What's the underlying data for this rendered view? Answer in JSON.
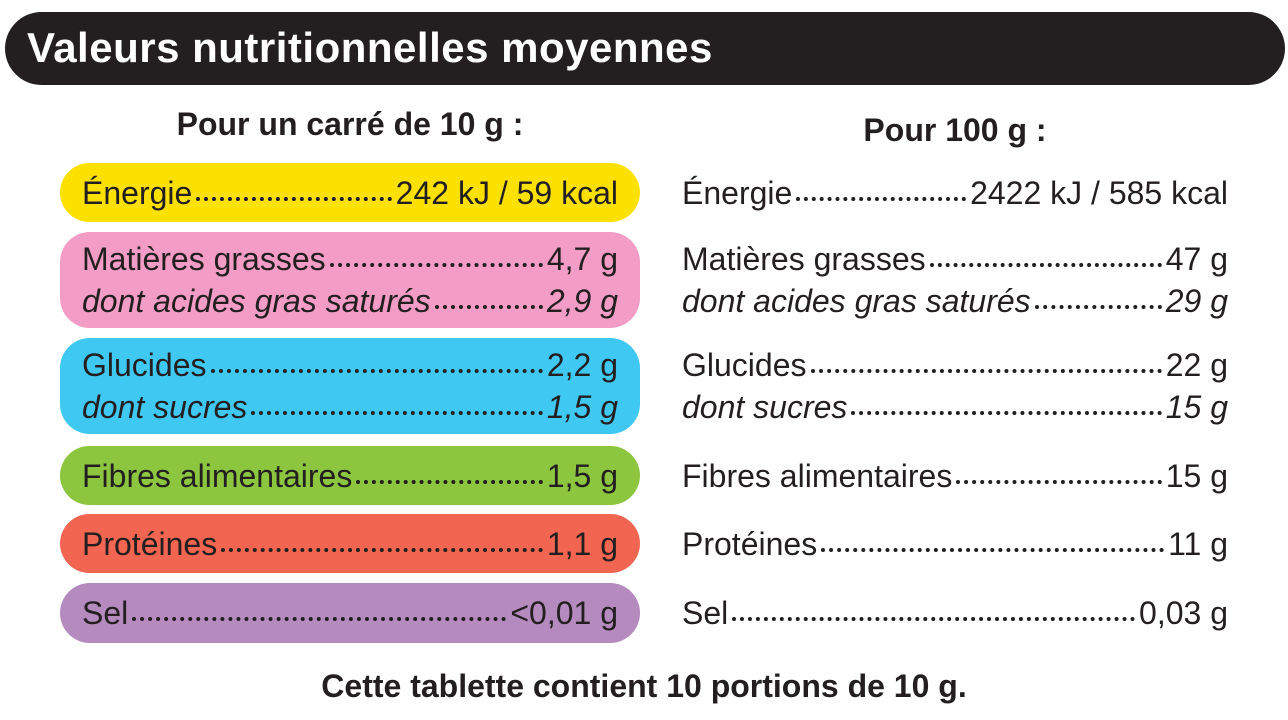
{
  "header": {
    "title": "Valeurs nutritionnelles moyennes"
  },
  "columns": {
    "portion": "Pour un carré de 10 g  :",
    "per100": "Pour 100 g :"
  },
  "groups": [
    {
      "lines": [
        {
          "label": "Énergie",
          "portion": "242 kJ / 59 kcal",
          "per100": "2422 kJ / 585 kcal"
        }
      ]
    },
    {
      "lines": [
        {
          "label": "Matières grasses",
          "portion": "4,7 g",
          "per100": "47 g"
        },
        {
          "label": "dont acides gras saturés",
          "portion": "2,9 g",
          "per100": "29 g"
        }
      ]
    },
    {
      "lines": [
        {
          "label": "Glucides",
          "portion": "2,2 g",
          "per100": "22 g"
        },
        {
          "label": "dont sucres",
          "portion": "1,5 g",
          "per100": "15 g"
        }
      ]
    },
    {
      "lines": [
        {
          "label": "Fibres alimentaires",
          "portion": "1,5 g",
          "per100": "15 g"
        }
      ]
    },
    {
      "lines": [
        {
          "label": "Protéines",
          "portion": "1,1 g",
          "per100": "11 g"
        }
      ]
    },
    {
      "lines": [
        {
          "label": "Sel",
          "portion": "<0,01 g",
          "per100": "0,03 g"
        }
      ]
    }
  ],
  "footer": {
    "note": "Cette tablette contient 10 portions de 10 g."
  }
}
